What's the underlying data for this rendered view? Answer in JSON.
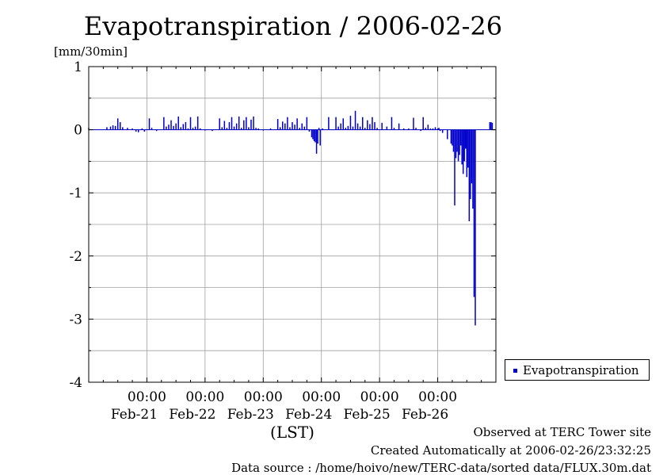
{
  "colors": {
    "series": "#0000cc",
    "grid": "#a0a0a0",
    "axis": "#000000"
  },
  "legend": {
    "label": "Evapotranspiration",
    "placement": "right-bottom"
  },
  "footer": {
    "line1": "Observed at TERC Tower site",
    "line2": "Created Automatically at 2006-02-26/23:32:25",
    "line3": "Data source : /home/hoivo/new/TERC-data/sorted  data/FLUX.30m.dat"
  },
  "chart_data": {
    "type": "bar",
    "title": "Evapotranspiration / 2006-02-26",
    "ylabel": "[mm/30min]",
    "xlabel": "(LST)",
    "ylim": [
      -4,
      1
    ],
    "yticks": [
      1,
      0,
      -1,
      -2,
      -3,
      -4
    ],
    "xlim_days": [
      "2006-02-20 00:00",
      "2006-02-27 00:00"
    ],
    "xticks": [
      {
        "time": "00:00",
        "date": "Feb-21"
      },
      {
        "time": "00:00",
        "date": "Feb-22"
      },
      {
        "time": "00:00",
        "date": "Feb-23"
      },
      {
        "time": "00:00",
        "date": "Feb-24"
      },
      {
        "time": "00:00",
        "date": "Feb-25"
      },
      {
        "time": "00:00",
        "date": "Feb-26"
      }
    ],
    "grid": true,
    "series": [
      {
        "name": "Evapotranspiration",
        "points": [
          [
            "2006-02-20 00:00",
            0.03
          ],
          [
            "2006-02-20 07:30",
            0.04
          ],
          [
            "2006-02-20 09:00",
            0.05
          ],
          [
            "2006-02-20 10:00",
            0.07
          ],
          [
            "2006-02-20 11:00",
            0.06
          ],
          [
            "2006-02-20 12:00",
            0.18
          ],
          [
            "2006-02-20 13:00",
            0.12
          ],
          [
            "2006-02-20 14:00",
            0.04
          ],
          [
            "2006-02-20 16:00",
            0.03
          ],
          [
            "2006-02-20 18:00",
            0.02
          ],
          [
            "2006-02-20 19:30",
            -0.03
          ],
          [
            "2006-02-20 20:30",
            -0.04
          ],
          [
            "2006-02-20 22:00",
            0.02
          ],
          [
            "2006-02-20 23:00",
            -0.03
          ],
          [
            "2006-02-21 00:00",
            0.01
          ],
          [
            "2006-02-21 01:00",
            0.18
          ],
          [
            "2006-02-21 02:00",
            0.03
          ],
          [
            "2006-02-21 04:00",
            -0.02
          ],
          [
            "2006-02-21 07:00",
            0.2
          ],
          [
            "2006-02-21 08:00",
            0.05
          ],
          [
            "2006-02-21 09:00",
            0.08
          ],
          [
            "2006-02-21 10:00",
            0.15
          ],
          [
            "2006-02-21 11:00",
            0.06
          ],
          [
            "2006-02-21 12:00",
            0.1
          ],
          [
            "2006-02-21 13:00",
            0.21
          ],
          [
            "2006-02-21 14:00",
            0.04
          ],
          [
            "2006-02-21 15:00",
            0.09
          ],
          [
            "2006-02-21 16:00",
            0.12
          ],
          [
            "2006-02-21 17:00",
            0.02
          ],
          [
            "2006-02-21 18:00",
            0.2
          ],
          [
            "2006-02-21 19:00",
            0.03
          ],
          [
            "2006-02-21 20:00",
            0.05
          ],
          [
            "2006-02-21 21:00",
            0.21
          ],
          [
            "2006-02-21 22:00",
            0.02
          ],
          [
            "2006-02-22 00:00",
            0.0
          ],
          [
            "2006-02-22 03:00",
            -0.02
          ],
          [
            "2006-02-22 06:00",
            0.18
          ],
          [
            "2006-02-22 07:00",
            0.04
          ],
          [
            "2006-02-22 08:00",
            0.14
          ],
          [
            "2006-02-22 09:00",
            0.03
          ],
          [
            "2006-02-22 10:00",
            0.12
          ],
          [
            "2006-02-22 11:00",
            0.2
          ],
          [
            "2006-02-22 12:00",
            0.05
          ],
          [
            "2006-02-22 13:00",
            0.1
          ],
          [
            "2006-02-22 14:00",
            0.21
          ],
          [
            "2006-02-22 15:00",
            0.03
          ],
          [
            "2006-02-22 16:00",
            0.15
          ],
          [
            "2006-02-22 17:00",
            0.2
          ],
          [
            "2006-02-22 18:00",
            0.04
          ],
          [
            "2006-02-22 19:00",
            0.16
          ],
          [
            "2006-02-22 20:00",
            0.21
          ],
          [
            "2006-02-22 21:00",
            0.03
          ],
          [
            "2006-02-22 22:00",
            0.02
          ],
          [
            "2006-02-23 00:00",
            0.0
          ],
          [
            "2006-02-23 03:00",
            0.02
          ],
          [
            "2006-02-23 06:00",
            0.17
          ],
          [
            "2006-02-23 07:00",
            0.04
          ],
          [
            "2006-02-23 08:00",
            0.13
          ],
          [
            "2006-02-23 09:00",
            0.1
          ],
          [
            "2006-02-23 10:00",
            0.2
          ],
          [
            "2006-02-23 11:00",
            0.04
          ],
          [
            "2006-02-23 12:00",
            0.12
          ],
          [
            "2006-02-23 13:00",
            0.08
          ],
          [
            "2006-02-23 14:00",
            0.18
          ],
          [
            "2006-02-23 15:00",
            0.03
          ],
          [
            "2006-02-23 16:00",
            0.1
          ],
          [
            "2006-02-23 17:00",
            0.05
          ],
          [
            "2006-02-23 18:00",
            0.2
          ],
          [
            "2006-02-23 19:00",
            -0.03
          ],
          [
            "2006-02-23 20:00",
            -0.12
          ],
          [
            "2006-02-23 20:30",
            -0.15
          ],
          [
            "2006-02-23 21:00",
            -0.18
          ],
          [
            "2006-02-23 21:30",
            -0.2
          ],
          [
            "2006-02-23 22:00",
            -0.38
          ],
          [
            "2006-02-23 22:30",
            -0.22
          ],
          [
            "2006-02-23 23:00",
            0.03
          ],
          [
            "2006-02-23 23:30",
            -0.25
          ],
          [
            "2006-02-24 00:30",
            0.02
          ],
          [
            "2006-02-24 03:00",
            0.2
          ],
          [
            "2006-02-24 06:00",
            0.2
          ],
          [
            "2006-02-24 07:00",
            0.05
          ],
          [
            "2006-02-24 08:00",
            0.1
          ],
          [
            "2006-02-24 09:00",
            0.18
          ],
          [
            "2006-02-24 10:00",
            0.03
          ],
          [
            "2006-02-24 11:00",
            0.06
          ],
          [
            "2006-02-24 12:00",
            0.22
          ],
          [
            "2006-02-24 13:00",
            0.05
          ],
          [
            "2006-02-24 14:00",
            0.3
          ],
          [
            "2006-02-24 15:00",
            0.1
          ],
          [
            "2006-02-24 16:00",
            0.05
          ],
          [
            "2006-02-24 17:00",
            0.2
          ],
          [
            "2006-02-24 18:00",
            0.03
          ],
          [
            "2006-02-24 19:00",
            0.15
          ],
          [
            "2006-02-24 20:00",
            0.09
          ],
          [
            "2006-02-24 21:00",
            0.2
          ],
          [
            "2006-02-24 22:00",
            0.12
          ],
          [
            "2006-02-24 23:00",
            0.03
          ],
          [
            "2006-02-25 01:00",
            0.11
          ],
          [
            "2006-02-25 03:00",
            0.05
          ],
          [
            "2006-02-25 05:00",
            0.2
          ],
          [
            "2006-02-25 06:00",
            0.03
          ],
          [
            "2006-02-25 08:00",
            0.1
          ],
          [
            "2006-02-25 10:00",
            0.02
          ],
          [
            "2006-02-25 12:00",
            0.02
          ],
          [
            "2006-02-25 14:00",
            0.19
          ],
          [
            "2006-02-25 15:00",
            0.03
          ],
          [
            "2006-02-25 17:00",
            -0.02
          ],
          [
            "2006-02-25 18:00",
            0.2
          ],
          [
            "2006-02-25 19:00",
            0.03
          ],
          [
            "2006-02-25 20:00",
            0.08
          ],
          [
            "2006-02-25 21:00",
            0.02
          ],
          [
            "2006-02-25 22:00",
            0.02
          ],
          [
            "2006-02-25 23:00",
            0.04
          ],
          [
            "2006-02-26 00:00",
            0.02
          ],
          [
            "2006-02-26 00:30",
            0.03
          ],
          [
            "2006-02-26 01:00",
            -0.02
          ],
          [
            "2006-02-26 02:00",
            -0.05
          ],
          [
            "2006-02-26 04:00",
            -0.15
          ],
          [
            "2006-02-26 05:30",
            -0.22
          ],
          [
            "2006-02-26 06:00",
            -0.25
          ],
          [
            "2006-02-26 06:30",
            -0.35
          ],
          [
            "2006-02-26 07:00",
            -1.2
          ],
          [
            "2006-02-26 07:30",
            -0.45
          ],
          [
            "2006-02-26 08:00",
            -0.35
          ],
          [
            "2006-02-26 08:30",
            -0.5
          ],
          [
            "2006-02-26 09:00",
            -0.4
          ],
          [
            "2006-02-26 09:30",
            -0.25
          ],
          [
            "2006-02-26 10:00",
            -0.55
          ],
          [
            "2006-02-26 10:30",
            -0.7
          ],
          [
            "2006-02-26 11:00",
            -0.5
          ],
          [
            "2006-02-26 11:30",
            -0.3
          ],
          [
            "2006-02-26 12:00",
            -0.75
          ],
          [
            "2006-02-26 12:30",
            -0.6
          ],
          [
            "2006-02-26 13:00",
            -1.45
          ],
          [
            "2006-02-26 13:30",
            -1.1
          ],
          [
            "2006-02-26 14:00",
            -0.85
          ],
          [
            "2006-02-26 14:30",
            -1.25
          ],
          [
            "2006-02-26 15:00",
            -2.65
          ],
          [
            "2006-02-26 15:30",
            -3.1
          ],
          [
            "2006-02-26 21:30",
            0.12
          ],
          [
            "2006-02-26 22:00",
            0.12
          ],
          [
            "2006-02-26 22:30",
            0.11
          ]
        ]
      }
    ]
  }
}
